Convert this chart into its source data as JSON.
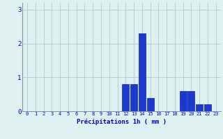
{
  "hours": [
    0,
    1,
    2,
    3,
    4,
    5,
    6,
    7,
    8,
    9,
    10,
    11,
    12,
    13,
    14,
    15,
    16,
    17,
    18,
    19,
    20,
    21,
    22,
    23
  ],
  "values": [
    0,
    0,
    0,
    0,
    0,
    0,
    0,
    0,
    0,
    0,
    0,
    0,
    0.8,
    0.8,
    2.3,
    0.4,
    0,
    0,
    0,
    0.6,
    0.6,
    0.2,
    0.2,
    0
  ],
  "bar_color": "#1a3acc",
  "bar_edge_color": "#0000bb",
  "background_color": "#dff0f0",
  "grid_color": "#aacccc",
  "xlabel": "Précipitations 1h ( mm )",
  "xlabel_color": "#0000cc",
  "tick_color": "#0000cc",
  "axis_color": "#7799aa",
  "ylim": [
    0,
    3.2
  ],
  "yticks": [
    0,
    1,
    2,
    3
  ],
  "figsize": [
    3.2,
    2.0
  ],
  "dpi": 100
}
